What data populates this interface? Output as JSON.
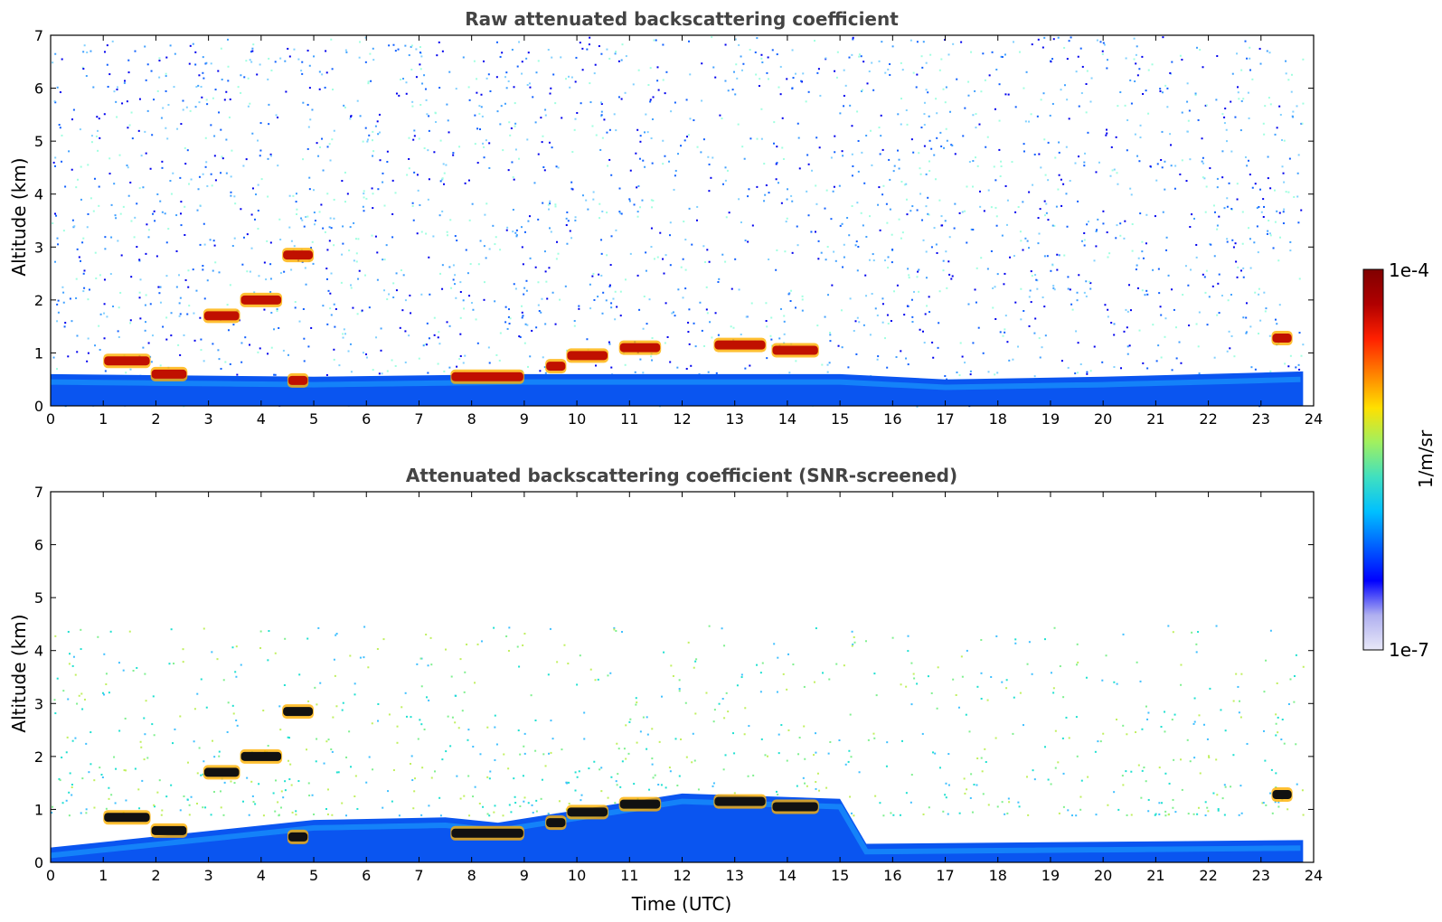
{
  "chart_data": [
    {
      "type": "heatmap",
      "title": "Raw attenuated backscattering coefficient",
      "xlabel": "",
      "ylabel": "Altitude (km)",
      "xlim": [
        0,
        24
      ],
      "ylim": [
        0,
        7
      ],
      "x_ticks": [
        "0",
        "1",
        "2",
        "3",
        "4",
        "5",
        "6",
        "7",
        "8",
        "9",
        "10",
        "11",
        "12",
        "13",
        "14",
        "15",
        "16",
        "17",
        "18",
        "19",
        "20",
        "21",
        "22",
        "23",
        "24"
      ],
      "y_ticks": [
        "0",
        "1",
        "2",
        "3",
        "4",
        "5",
        "6",
        "7"
      ],
      "data_end_time": 23.8,
      "noise_pattern": "dense",
      "boundary_layer": [
        {
          "t": 0,
          "h": 0.6
        },
        {
          "t": 5,
          "h": 0.55
        },
        {
          "t": 9,
          "h": 0.6
        },
        {
          "t": 15,
          "h": 0.6
        },
        {
          "t": 17,
          "h": 0.5
        },
        {
          "t": 20,
          "h": 0.55
        },
        {
          "t": 23.8,
          "h": 0.65
        }
      ],
      "cloud_layers": [
        {
          "t_start": 1.0,
          "t_end": 1.9,
          "alt_km": 0.85
        },
        {
          "t_start": 1.9,
          "t_end": 2.6,
          "alt_km": 0.6
        },
        {
          "t_start": 2.9,
          "t_end": 3.6,
          "alt_km": 1.7
        },
        {
          "t_start": 3.6,
          "t_end": 4.4,
          "alt_km": 2.0
        },
        {
          "t_start": 4.4,
          "t_end": 5.0,
          "alt_km": 2.85
        },
        {
          "t_start": 4.5,
          "t_end": 4.9,
          "alt_km": 0.48
        },
        {
          "t_start": 7.6,
          "t_end": 9.0,
          "alt_km": 0.55
        },
        {
          "t_start": 9.4,
          "t_end": 9.8,
          "alt_km": 0.75
        },
        {
          "t_start": 9.8,
          "t_end": 10.6,
          "alt_km": 0.95
        },
        {
          "t_start": 10.8,
          "t_end": 11.6,
          "alt_km": 1.1
        },
        {
          "t_start": 12.6,
          "t_end": 13.6,
          "alt_km": 1.15
        },
        {
          "t_start": 13.7,
          "t_end": 14.6,
          "alt_km": 1.05
        },
        {
          "t_start": 23.2,
          "t_end": 23.6,
          "alt_km": 1.28
        }
      ]
    },
    {
      "type": "heatmap",
      "title": "Attenuated backscattering coefficient (SNR-screened)",
      "xlabel": "Time (UTC)",
      "ylabel": "Altitude (km)",
      "xlim": [
        0,
        24
      ],
      "ylim": [
        0,
        7
      ],
      "x_ticks": [
        "0",
        "1",
        "2",
        "3",
        "4",
        "5",
        "6",
        "7",
        "8",
        "9",
        "10",
        "11",
        "12",
        "13",
        "14",
        "15",
        "16",
        "17",
        "18",
        "19",
        "20",
        "21",
        "22",
        "23",
        "24"
      ],
      "y_ticks": [
        "0",
        "1",
        "2",
        "3",
        "4",
        "5",
        "6",
        "7"
      ],
      "data_end_time": 23.8,
      "noise_pattern": "screened",
      "boundary_layer": [
        {
          "t": 0,
          "h": 0.28
        },
        {
          "t": 5,
          "h": 0.8
        },
        {
          "t": 7.5,
          "h": 0.85
        },
        {
          "t": 8.5,
          "h": 0.75
        },
        {
          "t": 12,
          "h": 1.3
        },
        {
          "t": 15,
          "h": 1.2
        },
        {
          "t": 15.5,
          "h": 0.35
        },
        {
          "t": 23.8,
          "h": 0.42
        }
      ],
      "cloud_layers": [
        {
          "t_start": 1.0,
          "t_end": 1.9,
          "alt_km": 0.85
        },
        {
          "t_start": 1.9,
          "t_end": 2.6,
          "alt_km": 0.6
        },
        {
          "t_start": 2.9,
          "t_end": 3.6,
          "alt_km": 1.7
        },
        {
          "t_start": 3.6,
          "t_end": 4.4,
          "alt_km": 2.0
        },
        {
          "t_start": 4.4,
          "t_end": 5.0,
          "alt_km": 2.85
        },
        {
          "t_start": 4.5,
          "t_end": 4.9,
          "alt_km": 0.48
        },
        {
          "t_start": 7.6,
          "t_end": 9.0,
          "alt_km": 0.55
        },
        {
          "t_start": 9.4,
          "t_end": 9.8,
          "alt_km": 0.75
        },
        {
          "t_start": 9.8,
          "t_end": 10.6,
          "alt_km": 0.95
        },
        {
          "t_start": 10.8,
          "t_end": 11.6,
          "alt_km": 1.1
        },
        {
          "t_start": 12.6,
          "t_end": 13.6,
          "alt_km": 1.15
        },
        {
          "t_start": 13.7,
          "t_end": 14.6,
          "alt_km": 1.05
        },
        {
          "t_start": 23.2,
          "t_end": 23.6,
          "alt_km": 1.28
        }
      ]
    }
  ],
  "colorbar": {
    "label": "1/m/sr",
    "min_label": "1e-7",
    "max_label": "1e-4",
    "colors": [
      "#e8e8f8",
      "#b0b0f0",
      "#0000ff",
      "#0060ff",
      "#00c0ff",
      "#40e0c0",
      "#a0f060",
      "#ffe000",
      "#ff8000",
      "#ff2000",
      "#b00000",
      "#800000"
    ]
  }
}
